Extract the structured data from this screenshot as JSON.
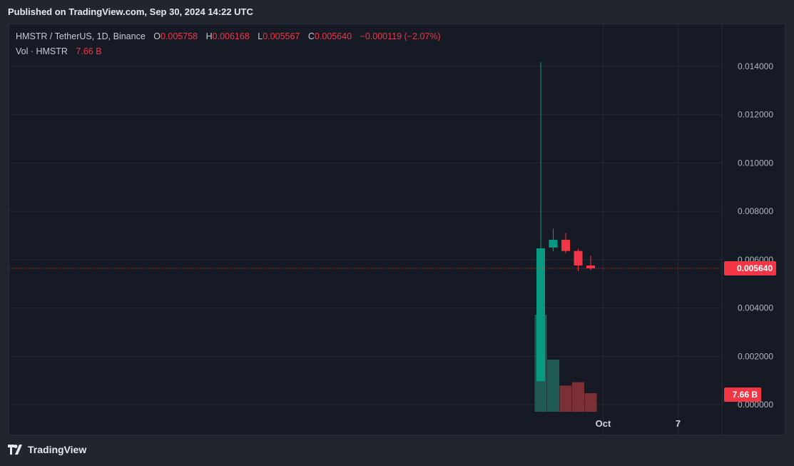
{
  "header": {
    "published": "Published on TradingView.com, Sep 30, 2024 14:22 UTC"
  },
  "legend": {
    "symbol": "HMSTR / TetherUS, 1D, Binance",
    "o_label": "O",
    "o_value": "0.005758",
    "h_label": "H",
    "h_value": "0.006168",
    "l_label": "L",
    "l_value": "0.005567",
    "c_label": "C",
    "c_value": "0.005640",
    "change": "−0.000119 (−2.07%)",
    "vol_label": "Vol · HMSTR",
    "vol_value": "7.66 B"
  },
  "footer": {
    "brand": "TradingView"
  },
  "colors": {
    "up": "#089981",
    "down": "#f23645",
    "up_vol": "#1f5a57",
    "down_vol": "#7a3034",
    "grid": "#252a36",
    "price_line": "#f23645"
  },
  "chart_data": {
    "type": "candlestick",
    "price_axis": {
      "ylim": [
        0,
        0.014
      ],
      "ticks": [
        "0.014000",
        "0.012000",
        "0.010000",
        "0.008000",
        "0.006000",
        "0.004000",
        "0.002000",
        "0.000000"
      ]
    },
    "time_axis": {
      "ticks": [
        "Oct",
        "7"
      ]
    },
    "last_price": "0.005640",
    "last_volume": "7.66 B",
    "candles": [
      {
        "date": "2024-09-26",
        "open": 0.000968,
        "high": 0.01418,
        "low": 0.000968,
        "close": 0.00647,
        "volume": 40.0
      },
      {
        "date": "2024-09-27",
        "open": 0.0065,
        "high": 0.00728,
        "low": 0.00635,
        "close": 0.00682,
        "volume": 21.5
      },
      {
        "date": "2024-09-28",
        "open": 0.00682,
        "high": 0.00711,
        "low": 0.00626,
        "close": 0.00636,
        "volume": 10.8
      },
      {
        "date": "2024-09-29",
        "open": 0.00636,
        "high": 0.00644,
        "low": 0.00553,
        "close": 0.00576,
        "volume": 12.2
      },
      {
        "date": "2024-09-30",
        "open": 0.005758,
        "high": 0.006168,
        "low": 0.005567,
        "close": 0.00564,
        "volume": 7.66
      }
    ]
  }
}
